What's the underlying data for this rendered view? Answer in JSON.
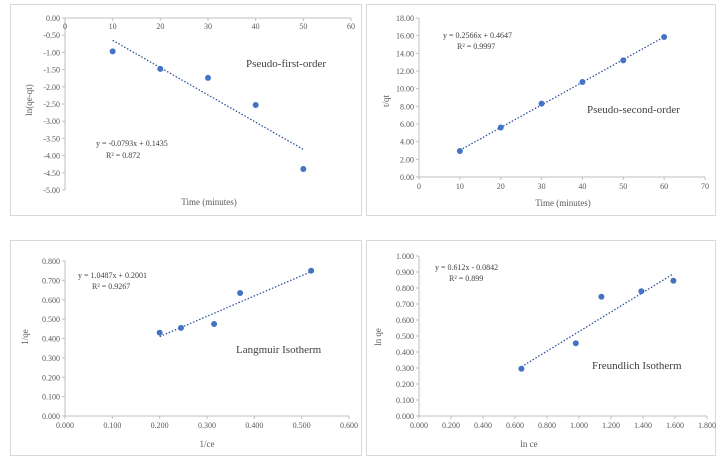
{
  "chart_data": [
    {
      "type": "scatter",
      "title": "Pseudo-first-order",
      "xlabel": "Time (minutes)",
      "ylabel": "ln(qe-qt)",
      "xlim": [
        0,
        60
      ],
      "ylim": [
        -5,
        0
      ],
      "xticks": [
        0,
        10,
        20,
        30,
        40,
        50,
        60
      ],
      "yticks": [
        0,
        -0.5,
        -1,
        -1.5,
        -2,
        -2.5,
        -3,
        -3.5,
        -4,
        -4.5,
        -5
      ],
      "ydecimals": 2,
      "xdecimals": 0,
      "x": [
        10,
        20,
        30,
        40,
        50
      ],
      "y": [
        -0.97,
        -1.48,
        -1.74,
        -2.53,
        -4.39
      ],
      "trendline": {
        "slope": -0.0793,
        "intercept": 0.1435,
        "x_range": [
          10,
          50
        ]
      },
      "equation": "y = -0.0793x + 0.1435",
      "r2": "R² = 0.872",
      "xaxis_at_top": true
    },
    {
      "type": "scatter",
      "title": "Pseudo-second-order",
      "xlabel": "Time (minutes)",
      "ylabel": "t/qt",
      "xlim": [
        0,
        70
      ],
      "ylim": [
        0,
        18
      ],
      "xticks": [
        0,
        10,
        20,
        30,
        40,
        50,
        60,
        70
      ],
      "yticks": [
        0,
        2,
        4,
        6,
        8,
        10,
        12,
        14,
        16,
        18
      ],
      "ydecimals": 2,
      "xdecimals": 0,
      "x": [
        10,
        20,
        30,
        40,
        50,
        60
      ],
      "y": [
        2.95,
        5.6,
        8.3,
        10.75,
        13.2,
        15.85
      ],
      "trendline": {
        "slope": 0.2566,
        "intercept": 0.4647,
        "x_range": [
          10,
          60
        ]
      },
      "equation": "y = 0.2566x + 0.4647",
      "r2": "R² = 0.9997",
      "xaxis_at_top": false
    },
    {
      "type": "scatter",
      "title": "Langmuir Isotherm",
      "xlabel": "1/ce",
      "ylabel": "1/qe",
      "xlim": [
        0,
        0.6
      ],
      "ylim": [
        0,
        0.8
      ],
      "xticks": [
        0,
        0.1,
        0.2,
        0.3,
        0.4,
        0.5,
        0.6
      ],
      "yticks": [
        0,
        0.1,
        0.2,
        0.3,
        0.4,
        0.5,
        0.6,
        0.7,
        0.8
      ],
      "ydecimals": 3,
      "xdecimals": 3,
      "x": [
        0.2,
        0.245,
        0.315,
        0.37,
        0.52
      ],
      "y": [
        0.43,
        0.455,
        0.475,
        0.635,
        0.75
      ],
      "trendline": {
        "slope": 1.0487,
        "intercept": 0.2001,
        "x_range": [
          0.2,
          0.52
        ]
      },
      "equation": "y = 1.0487x + 0.2001",
      "r2": "R² = 0.9267",
      "xaxis_at_top": false
    },
    {
      "type": "scatter",
      "title": "Freundlich Isotherm",
      "xlabel": "ln ce",
      "ylabel": "ln qe",
      "xlim": [
        0,
        1.8
      ],
      "ylim": [
        0,
        1
      ],
      "xticks": [
        0,
        0.2,
        0.4,
        0.6,
        0.8,
        1,
        1.2,
        1.4,
        1.6,
        1.8
      ],
      "yticks": [
        0,
        0.1,
        0.2,
        0.3,
        0.4,
        0.5,
        0.6,
        0.7,
        0.8,
        0.9,
        1
      ],
      "ydecimals": 3,
      "xdecimals": 3,
      "x": [
        0.64,
        0.98,
        1.14,
        1.39,
        1.59
      ],
      "y": [
        0.295,
        0.455,
        0.745,
        0.78,
        0.845
      ],
      "trendline": {
        "slope": 0.612,
        "intercept": -0.0842,
        "x_range": [
          0.64,
          1.59
        ]
      },
      "equation": "y = 0.612x - 0.0842",
      "r2": "R² = 0.899",
      "xaxis_at_top": false
    }
  ],
  "colors": {
    "marker": "#4472c4",
    "trend": "#2e5597",
    "axis": "#bfbfbf",
    "text": "#595959"
  }
}
